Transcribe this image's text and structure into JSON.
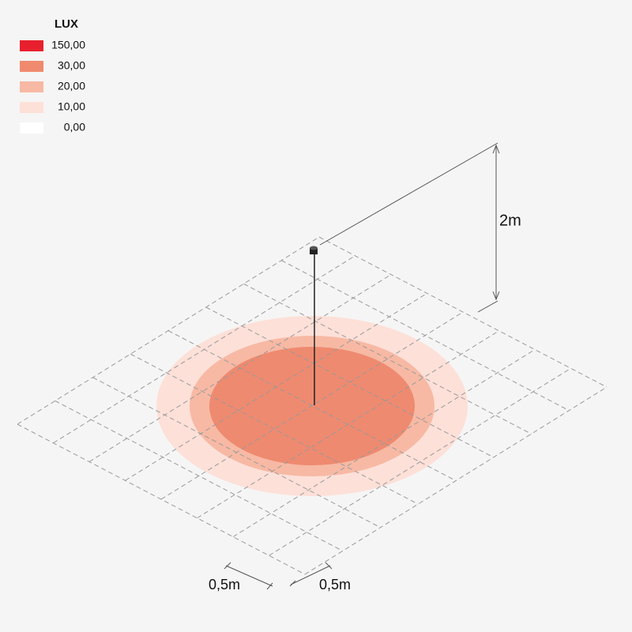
{
  "legend": {
    "title": "LUX",
    "entries": [
      {
        "label": "150,00",
        "color": "#e8202e"
      },
      {
        "label": "30,00",
        "color": "#f08a6e"
      },
      {
        "label": "20,00",
        "color": "#f7b9a4"
      },
      {
        "label": "10,00",
        "color": "#fde0d8"
      },
      {
        "label": "0,00",
        "color": "#ffffff"
      }
    ]
  },
  "dimensions": {
    "height": "2m",
    "grid_x": "0,5m",
    "grid_y": "0,5m"
  }
}
